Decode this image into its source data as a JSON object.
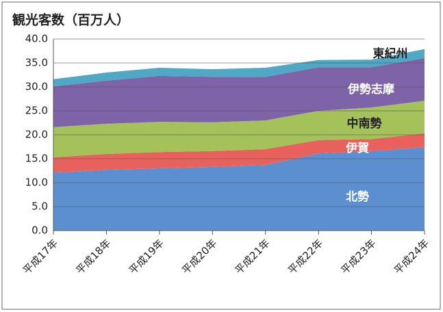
{
  "chart_data": {
    "type": "stacked_area",
    "title": "観光客数（百万人）",
    "categories": [
      "平成17年",
      "平成18年",
      "平成19年",
      "平成20年",
      "平成21年",
      "平成22年",
      "平成23年",
      "平成24年"
    ],
    "series": [
      {
        "name": "北勢",
        "color": "#5b8fd0",
        "values": [
          12.1,
          12.7,
          13.0,
          13.3,
          13.7,
          16.1,
          16.6,
          17.4
        ]
      },
      {
        "name": "伊賀",
        "color": "#e8615c",
        "values": [
          3.2,
          3.3,
          3.4,
          3.3,
          3.3,
          2.8,
          2.5,
          2.9
        ]
      },
      {
        "name": "中南勢",
        "color": "#a5c25a",
        "values": [
          6.3,
          6.3,
          6.3,
          6.0,
          6.0,
          6.1,
          6.6,
          6.8
        ]
      },
      {
        "name": "伊勢志摩",
        "color": "#7f63a8",
        "values": [
          8.5,
          9.0,
          9.6,
          9.5,
          9.1,
          9.1,
          8.4,
          8.9
        ]
      },
      {
        "name": "東紀州",
        "color": "#4fa8c4",
        "values": [
          1.5,
          1.7,
          1.7,
          1.6,
          1.9,
          1.5,
          1.6,
          1.9
        ]
      }
    ],
    "ylim": [
      0,
      40
    ],
    "yticks": [
      {
        "value": 0,
        "label": "0.0"
      },
      {
        "value": 5,
        "label": "5.0"
      },
      {
        "value": 10,
        "label": "10.0"
      },
      {
        "value": 15,
        "label": "15.0"
      },
      {
        "value": 20,
        "label": "20.0"
      },
      {
        "value": 25,
        "label": "25.0"
      },
      {
        "value": 30,
        "label": "30.0"
      },
      {
        "value": 35,
        "label": "35.0"
      },
      {
        "value": 40,
        "label": "40.0"
      }
    ],
    "grid": true
  }
}
